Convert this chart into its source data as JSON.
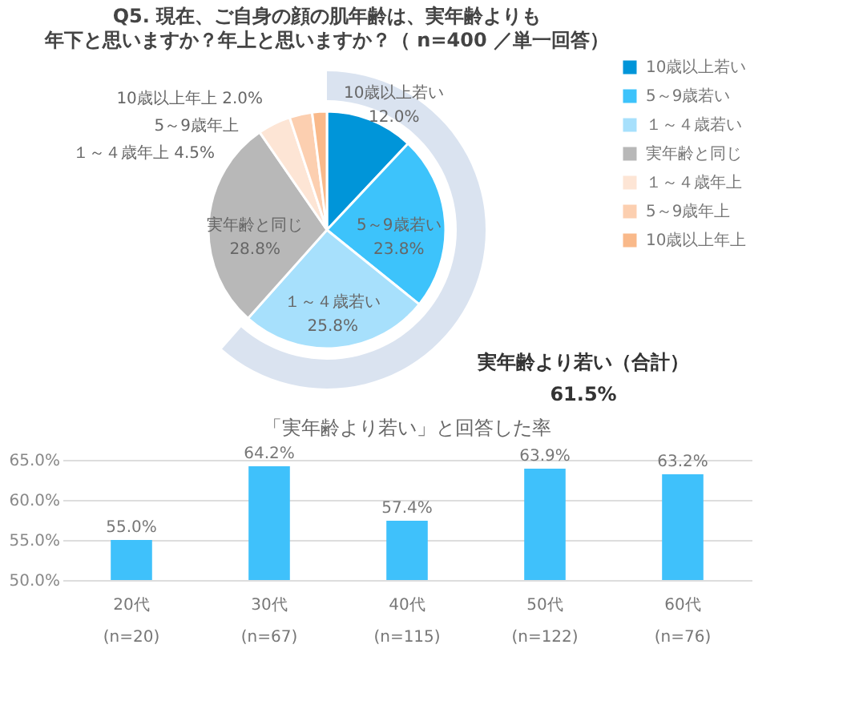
{
  "chart_data": [
    {
      "type": "pie",
      "title": "Q5. 現在、ご自身の顔の肌年齢は、実年齢よりも",
      "subtitle": "年下と思いますか？年上と思いますか？（ n=400 ／単一回答）",
      "categories": [
        "10歳以上若い",
        "5～9歳若い",
        "１～４歳若い",
        "実年齢と同じ",
        "１～４歳年上",
        "5～9歳年上",
        "10歳以上年上"
      ],
      "legend": "right",
      "series": [
        {
          "values": [
            12.0,
            23.8,
            25.8,
            28.8,
            4.5,
            3.1,
            2.0
          ],
          "colors": [
            "#0095d9",
            "#3dc3fb",
            "#a7e0fc",
            "#b8b8b8",
            "#fde5d5",
            "#fccfb0",
            "#f9b98a"
          ],
          "value_labels": [
            "12.0%",
            "23.8%",
            "25.8%",
            "28.8%",
            "4.5%",
            null,
            "2.0%"
          ]
        },
        {
          "name": "実年齢より若い（合計）",
          "values": [
            61.5,
            null,
            null,
            null,
            null,
            null,
            null
          ],
          "color": "#dae3f0",
          "value_labels": [
            "61.5%",
            null,
            null,
            null,
            null,
            null,
            null
          ]
        }
      ]
    },
    {
      "type": "bar",
      "title": "「実年齢より若い」と回答した率",
      "categories": [
        "20代 (n=20)",
        "30代 (n=67)",
        "40代 (n=115)",
        "50代 (n=122)",
        "60代 (n=76)"
      ],
      "values": [
        55.0,
        64.2,
        57.4,
        63.9,
        63.2
      ],
      "color": "#3fc1fb",
      "value_labels": [
        "55.0%",
        "64.2%",
        "57.4%",
        "63.9%",
        "63.2%"
      ],
      "ylim": [
        50,
        65
      ],
      "yticks": [
        {
          "value": 50,
          "label": "50.0%"
        },
        {
          "value": 55,
          "label": "55.0%"
        },
        {
          "value": 60,
          "label": "60.0%"
        },
        {
          "value": 65,
          "label": "65.0%"
        }
      ],
      "grid": "y"
    }
  ]
}
